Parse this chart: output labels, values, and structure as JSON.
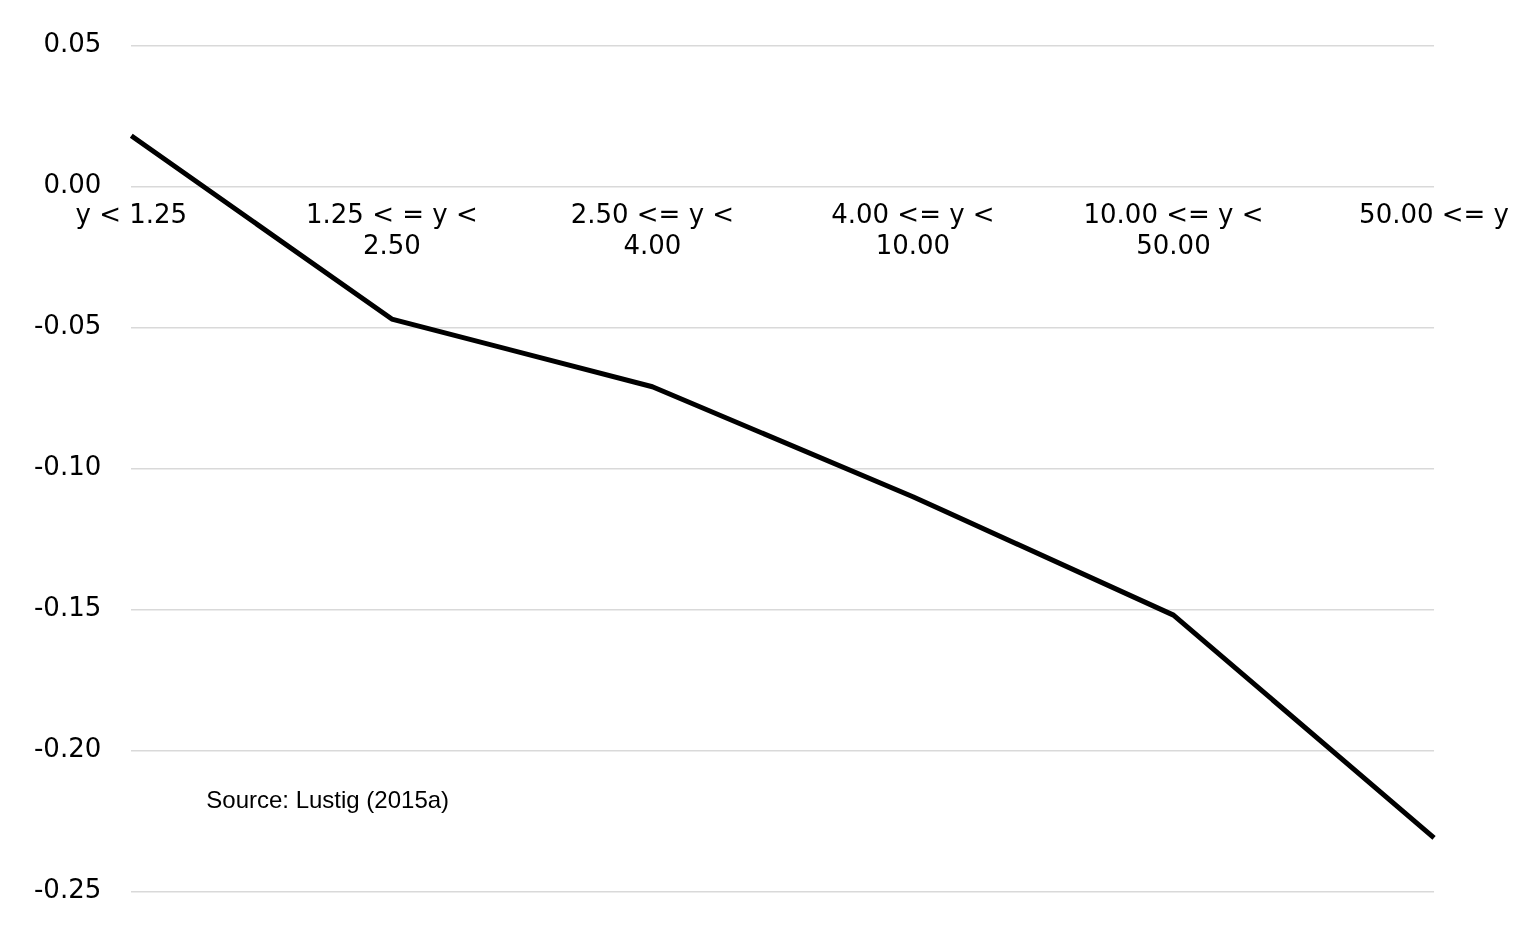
{
  "chart_data": {
    "type": "line",
    "categories": [
      "y < 1.25",
      "1.25 < = y < 2.50",
      "2.50 <= y < 4.00",
      "4.00 <= y < 10.00",
      "10.00 <= y < 50.00",
      "50.00 <= y"
    ],
    "series": [
      {
        "color": "#000000",
        "values": [
          0.018,
          -0.047,
          -0.071,
          -0.11,
          -0.152,
          -0.231
        ]
      }
    ],
    "ylim": [
      -0.25,
      0.05
    ],
    "yticks": [
      -0.25,
      {
        "value": -0.2,
        "label": "-0.20"
      },
      -0.15,
      {
        "value": -0.1,
        "label": "-0.10"
      },
      -0.05,
      {
        "value": 0,
        "label": "0.00"
      },
      0.05
    ],
    "grid": "y",
    "legend": false,
    "marker": "none",
    "line_style": "solid",
    "annotations": [
      "Source: Lustig (2015a)"
    ]
  }
}
